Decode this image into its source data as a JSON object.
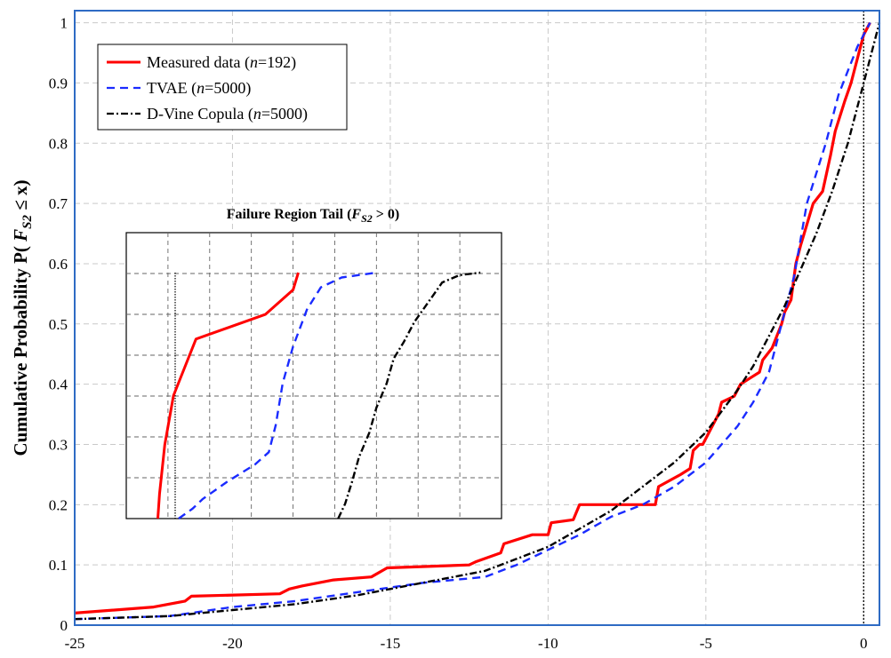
{
  "chart_data": [
    {
      "type": "line",
      "ylabel_prefix": "Cumulative Probability P( ",
      "ylabel_var": "F",
      "ylabel_sub": "S2",
      "ylabel_suffix": " ≤ x)",
      "xlim": [
        -25,
        0.5
      ],
      "ylim": [
        0,
        1.02
      ],
      "xticks": [
        -25,
        -20,
        -15,
        -10,
        -5,
        0
      ],
      "yticks": [
        0,
        0.1,
        0.2,
        0.3,
        0.4,
        0.5,
        0.6,
        0.7,
        0.8,
        0.9,
        1
      ],
      "grid": true,
      "legend_position": "top-left",
      "threshold_x": 0,
      "legend": {
        "measured": {
          "label": "Measured data (",
          "n": "n",
          "rest": "=192)"
        },
        "tvae": {
          "label": "TVAE (",
          "n": "n",
          "rest": "=5000)"
        },
        "copula": {
          "label": "D-Vine Copula (",
          "n": "n",
          "rest": "=5000)"
        }
      },
      "series": [
        {
          "name": "Measured data (n=192)",
          "color": "#ff0000",
          "style": "solid",
          "x": [
            -25,
            -22.5,
            -21.5,
            -21.3,
            -18.5,
            -18.2,
            -17.8,
            -16.8,
            -15.6,
            -15.1,
            -12.5,
            -12.3,
            -11.5,
            -11.4,
            -10.5,
            -10.0,
            -9.9,
            -9.2,
            -9.0,
            -8.0,
            -7.5,
            -6.6,
            -6.5,
            -5.8,
            -5.5,
            -5.4,
            -5.2,
            -5.1,
            -4.8,
            -4.6,
            -4.5,
            -4.1,
            -3.9,
            -3.6,
            -3.3,
            -3.2,
            -2.9,
            -2.6,
            -2.5,
            -2.3,
            -2.15,
            -2.0,
            -1.6,
            -1.3,
            -1.05,
            -0.9,
            -0.6,
            -0.4,
            -0.15,
            0.0,
            0.2
          ],
          "y": [
            0.02,
            0.03,
            0.04,
            0.048,
            0.052,
            0.06,
            0.065,
            0.075,
            0.08,
            0.095,
            0.1,
            0.105,
            0.12,
            0.135,
            0.15,
            0.15,
            0.17,
            0.175,
            0.2,
            0.2,
            0.2,
            0.2,
            0.23,
            0.25,
            0.26,
            0.29,
            0.3,
            0.3,
            0.33,
            0.35,
            0.37,
            0.38,
            0.4,
            0.41,
            0.42,
            0.44,
            0.46,
            0.5,
            0.52,
            0.54,
            0.6,
            0.63,
            0.7,
            0.72,
            0.78,
            0.82,
            0.87,
            0.9,
            0.95,
            0.98,
            1.0
          ]
        },
        {
          "name": "TVAE (n=5000)",
          "color": "#1a2bff",
          "style": "dashed",
          "x": [
            -25,
            -22,
            -20,
            -18,
            -16,
            -14,
            -12,
            -11,
            -10,
            -9,
            -8,
            -7,
            -6,
            -5,
            -4.5,
            -4,
            -3.5,
            -3,
            -2.8,
            -2.5,
            -2.2,
            -2.0,
            -1.8,
            -1.5,
            -1.2,
            -1.0,
            -0.8,
            -0.5,
            -0.2,
            0.0,
            0.2
          ],
          "y": [
            0.01,
            0.015,
            0.03,
            0.04,
            0.055,
            0.07,
            0.08,
            0.1,
            0.125,
            0.15,
            0.18,
            0.2,
            0.23,
            0.27,
            0.3,
            0.33,
            0.37,
            0.42,
            0.46,
            0.52,
            0.58,
            0.64,
            0.7,
            0.75,
            0.8,
            0.84,
            0.88,
            0.92,
            0.96,
            0.98,
            1.0
          ]
        },
        {
          "name": "D-Vine Copula (n=5000)",
          "color": "#000000",
          "style": "dashdot",
          "x": [
            -25,
            -22,
            -20,
            -18,
            -16,
            -14,
            -12,
            -10,
            -9,
            -8,
            -7,
            -6,
            -5,
            -4,
            -3.5,
            -3,
            -2.5,
            -2,
            -1.5,
            -1.0,
            -0.5,
            0.0,
            0.3,
            0.5
          ],
          "y": [
            0.01,
            0.015,
            0.025,
            0.035,
            0.05,
            0.07,
            0.09,
            0.13,
            0.16,
            0.19,
            0.23,
            0.27,
            0.32,
            0.39,
            0.43,
            0.48,
            0.53,
            0.59,
            0.65,
            0.72,
            0.8,
            0.9,
            0.96,
            1.0
          ]
        }
      ]
    },
    {
      "type": "line",
      "title_prefix": "Failure Region Tail (",
      "title_var": "F",
      "title_sub": "S2",
      "title_suffix": " > 0)",
      "xlim": [
        0,
        1
      ],
      "ylim": [
        0,
        1
      ],
      "grid": true,
      "threshold_x": 0.1,
      "series": [
        {
          "name": "Measured data (n=192)",
          "color": "#ff0000",
          "style": "solid",
          "x": [
            0.05,
            0.055,
            0.07,
            0.095,
            0.16,
            0.36,
            0.44,
            0.455
          ],
          "y": [
            0.0,
            0.1,
            0.3,
            0.5,
            0.73,
            0.83,
            0.93,
            1.0
          ]
        },
        {
          "name": "TVAE (n=5000)",
          "color": "#1a2bff",
          "style": "dashed",
          "x": [
            0.11,
            0.15,
            0.18,
            0.25,
            0.33,
            0.37,
            0.39,
            0.41,
            0.44,
            0.48,
            0.52,
            0.58,
            0.68
          ],
          "y": [
            0.0,
            0.04,
            0.08,
            0.15,
            0.22,
            0.27,
            0.38,
            0.55,
            0.7,
            0.85,
            0.94,
            0.98,
            1.0
          ]
        },
        {
          "name": "D-Vine Copula (n=5000)",
          "color": "#000000",
          "style": "dashdot",
          "x": [
            0.57,
            0.59,
            0.61,
            0.63,
            0.66,
            0.68,
            0.71,
            0.73,
            0.76,
            0.79,
            0.82,
            0.85,
            0.87,
            0.92,
            0.98
          ],
          "y": [
            0.0,
            0.06,
            0.15,
            0.25,
            0.35,
            0.45,
            0.55,
            0.65,
            0.72,
            0.8,
            0.86,
            0.92,
            0.96,
            0.99,
            1.0
          ]
        }
      ]
    }
  ]
}
